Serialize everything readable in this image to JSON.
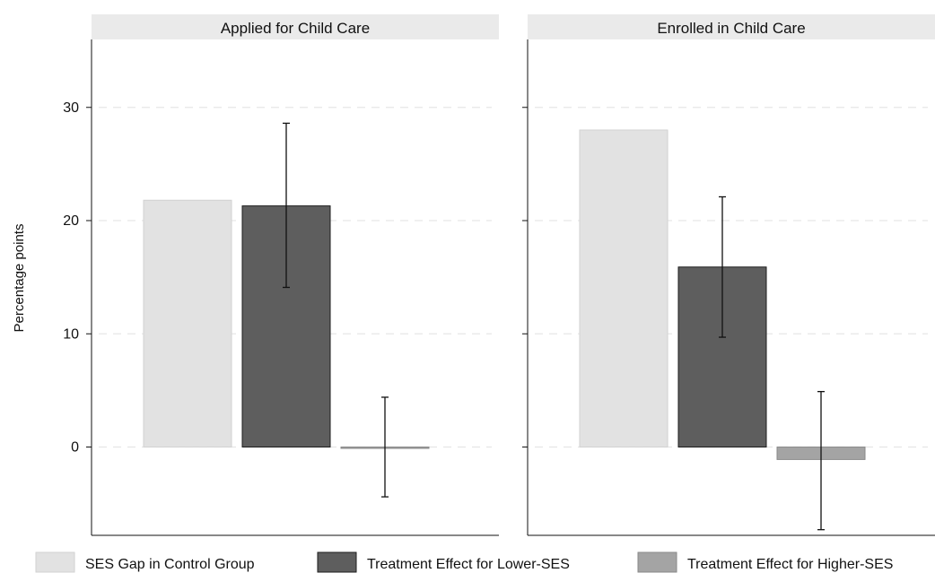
{
  "chart_data": {
    "type": "bar",
    "ylabel": "Percentage points",
    "xlabel": "",
    "ylim": [
      -7.8,
      36
    ],
    "yticks": [
      0,
      10,
      20,
      30
    ],
    "grid": true,
    "legend_placement": "bottom",
    "series": [
      {
        "name": "SES Gap in Control Group",
        "color": "#e2e2e2",
        "edge": "#d2d2d2"
      },
      {
        "name": "Treatment Effect for Lower-SES",
        "color": "#5e5e5e",
        "edge": "#1e1e1e"
      },
      {
        "name": "Treatment Effect for Higher-SES",
        "color": "#a4a4a4",
        "edge": "#8a8a8a"
      }
    ],
    "panels": [
      {
        "title": "Applied for Child Care",
        "values": [
          21.8,
          21.3,
          -0.05
        ],
        "ci": [
          null,
          [
            14.1,
            28.6
          ],
          [
            -4.4,
            4.4
          ]
        ]
      },
      {
        "title": "Enrolled in Child Care",
        "values": [
          28.0,
          15.9,
          -1.1
        ],
        "ci": [
          null,
          [
            9.7,
            22.1
          ],
          [
            -7.3,
            4.9
          ]
        ]
      }
    ]
  }
}
